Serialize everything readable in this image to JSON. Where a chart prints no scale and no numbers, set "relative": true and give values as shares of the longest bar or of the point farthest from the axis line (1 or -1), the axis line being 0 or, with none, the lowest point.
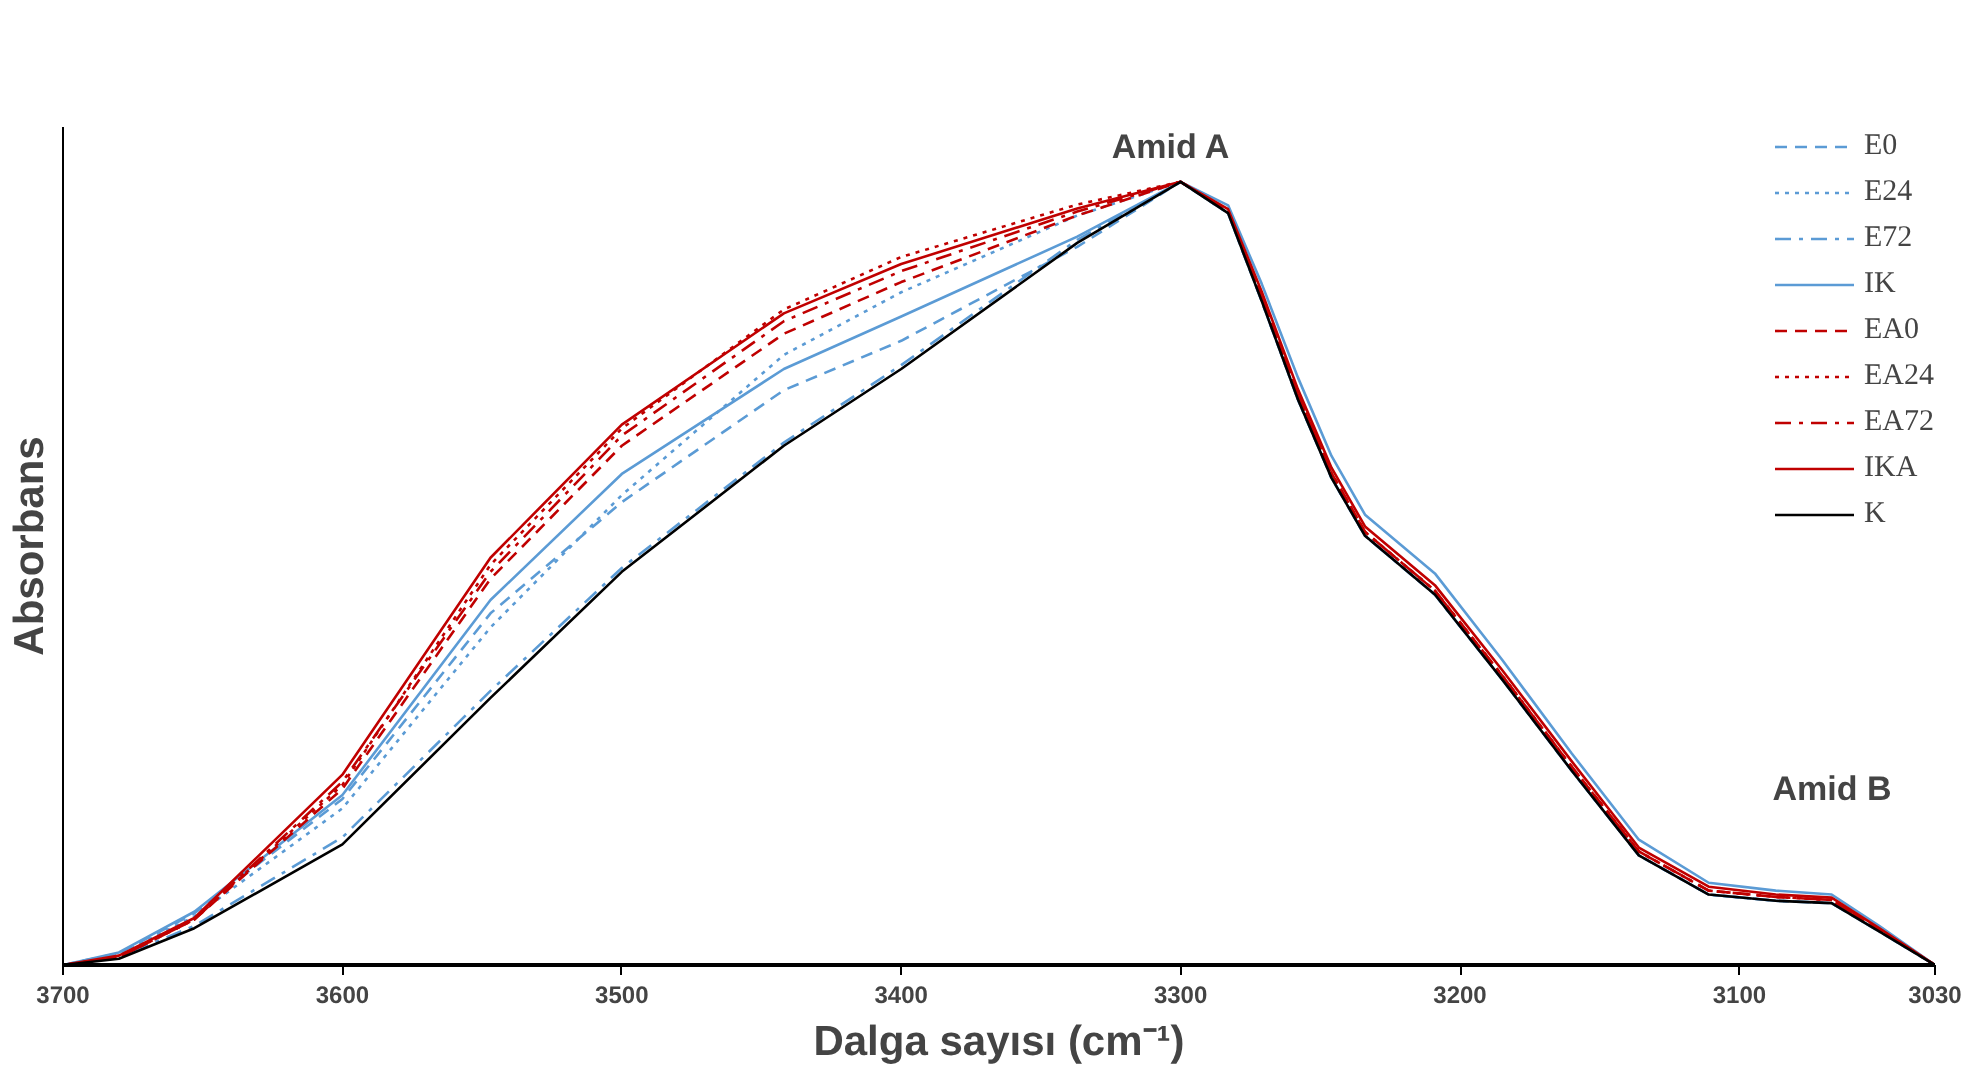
{
  "chart_data": {
    "type": "line",
    "relative": true,
    "xlabel": "Dalga sayısı (cm⁻¹)",
    "ylabel": "Absorbans",
    "x": [
      3700,
      3680,
      3653,
      3600,
      3547,
      3500,
      3442,
      3400,
      3337,
      3300,
      3283,
      3271,
      3258,
      3246,
      3234,
      3209,
      3185,
      3160,
      3136,
      3111,
      3087,
      3067,
      3050,
      3030
    ],
    "xlim": [
      3700,
      3030
    ],
    "xticks": [
      3700,
      3600,
      3500,
      3400,
      3300,
      3200,
      3100,
      3030
    ],
    "legend": "top right",
    "grid": false,
    "annotations": [
      "Amid   A",
      "Amid   B"
    ],
    "series": [
      {
        "name": "E0",
        "color": "#5b9bd5",
        "line_style": "dashed",
        "values": [
          0,
          0.015,
          0.066,
          0.212,
          0.449,
          0.591,
          0.734,
          0.797,
          0.917,
          1,
          0.96,
          0.848,
          0.722,
          0.622,
          0.548,
          0.473,
          0.365,
          0.248,
          0.14,
          0.09,
          0.082,
          0.079,
          0.043,
          0
        ]
      },
      {
        "name": "E24",
        "color": "#5b9bd5",
        "line_style": "dotted",
        "values": [
          0,
          0.013,
          0.062,
          0.2,
          0.431,
          0.6,
          0.779,
          0.859,
          0.957,
          1,
          0.96,
          0.848,
          0.722,
          0.622,
          0.548,
          0.473,
          0.365,
          0.248,
          0.14,
          0.09,
          0.082,
          0.079,
          0.043,
          0
        ]
      },
      {
        "name": "E72",
        "color": "#5b9bd5",
        "line_style": "dashdot",
        "values": [
          0,
          0.01,
          0.05,
          0.163,
          0.35,
          0.507,
          0.667,
          0.766,
          0.926,
          1,
          0.96,
          0.848,
          0.722,
          0.622,
          0.548,
          0.473,
          0.365,
          0.248,
          0.14,
          0.09,
          0.082,
          0.079,
          0.043,
          0
        ]
      },
      {
        "name": "IK",
        "color": "#5b9bd5",
        "line_style": "solid",
        "values": [
          0,
          0.016,
          0.068,
          0.217,
          0.466,
          0.627,
          0.761,
          0.828,
          0.93,
          1,
          0.97,
          0.87,
          0.75,
          0.65,
          0.575,
          0.5,
          0.39,
          0.27,
          0.16,
          0.105,
          0.095,
          0.09,
          0.05,
          0
        ]
      },
      {
        "name": "EA0",
        "color": "#c00000",
        "line_style": "dashed",
        "values": [
          0,
          0.01,
          0.058,
          0.225,
          0.493,
          0.663,
          0.806,
          0.872,
          0.957,
          1,
          0.962,
          0.853,
          0.728,
          0.628,
          0.553,
          0.478,
          0.37,
          0.253,
          0.145,
          0.095,
          0.087,
          0.083,
          0.045,
          0
        ]
      },
      {
        "name": "EA24",
        "color": "#c00000",
        "line_style": "dotted",
        "values": [
          0,
          0.01,
          0.058,
          0.23,
          0.511,
          0.685,
          0.837,
          0.904,
          0.971,
          1,
          0.962,
          0.853,
          0.728,
          0.628,
          0.553,
          0.478,
          0.37,
          0.253,
          0.145,
          0.095,
          0.087,
          0.083,
          0.045,
          0
        ]
      },
      {
        "name": "EA72",
        "color": "#c00000",
        "line_style": "dashdot",
        "values": [
          0,
          0.01,
          0.058,
          0.234,
          0.502,
          0.676,
          0.822,
          0.886,
          0.962,
          1,
          0.962,
          0.853,
          0.728,
          0.628,
          0.553,
          0.478,
          0.37,
          0.253,
          0.145,
          0.095,
          0.087,
          0.083,
          0.045,
          0
        ]
      },
      {
        "name": "IKA",
        "color": "#c00000",
        "line_style": "solid",
        "values": [
          0,
          0.012,
          0.06,
          0.243,
          0.52,
          0.69,
          0.832,
          0.895,
          0.966,
          1,
          0.965,
          0.86,
          0.735,
          0.635,
          0.56,
          0.485,
          0.377,
          0.26,
          0.15,
          0.1,
          0.09,
          0.086,
          0.047,
          0
        ]
      },
      {
        "name": "K",
        "color": "#000000",
        "line_style": "solid",
        "values": [
          0,
          0.008,
          0.047,
          0.154,
          0.341,
          0.502,
          0.663,
          0.761,
          0.922,
          1,
          0.96,
          0.848,
          0.722,
          0.622,
          0.548,
          0.473,
          0.365,
          0.248,
          0.14,
          0.09,
          0.082,
          0.079,
          0.043,
          0
        ]
      }
    ]
  }
}
